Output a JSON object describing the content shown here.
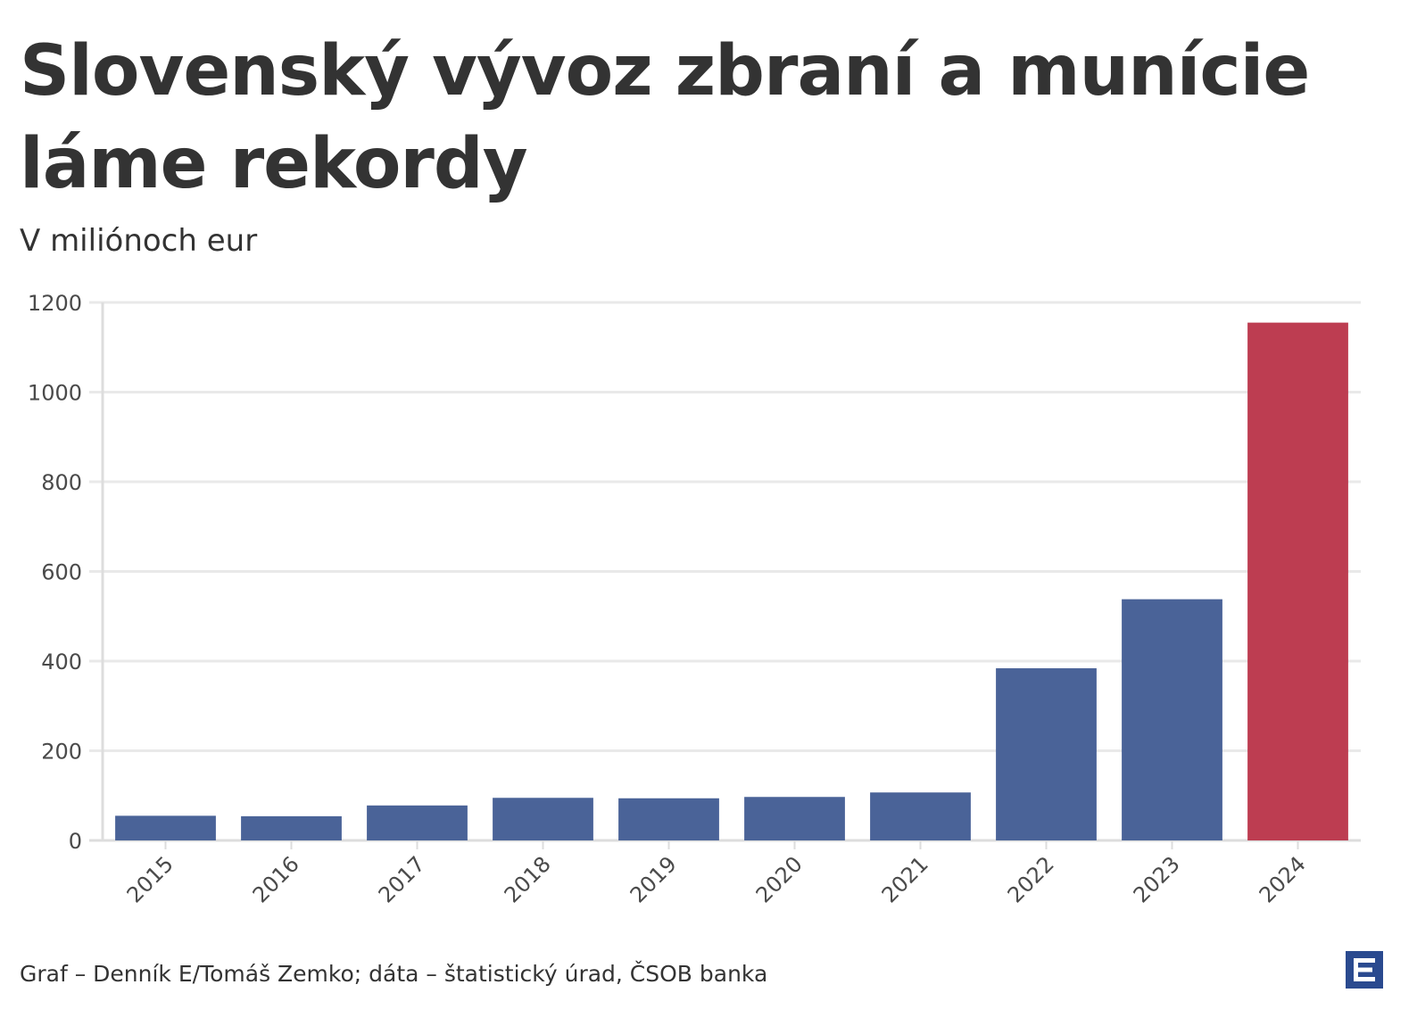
{
  "title": "Slovenský vývoz zbraní a munície láme rekordy",
  "subtitle": "V miliónoch eur",
  "footer": "Graf – Denník E/Tomáš Zemko; dáta – štatistický úrad, ČSOB banka",
  "colors": {
    "bar": "#4a6398",
    "highlight": "#bd3d51",
    "grid": "#e9e9e9",
    "axis": "#dddddd",
    "logo": "#2a4a8f"
  },
  "chart_data": {
    "type": "bar",
    "categories": [
      "2015",
      "2016",
      "2017",
      "2018",
      "2019",
      "2020",
      "2021",
      "2022",
      "2023",
      "2024"
    ],
    "values": [
      55,
      54,
      78,
      95,
      94,
      97,
      107,
      384,
      538,
      1155
    ],
    "highlight_category": "2024",
    "ylim": [
      0,
      1200
    ],
    "yticks": [
      0,
      200,
      400,
      600,
      800,
      1000,
      1200
    ],
    "grid": true,
    "xlabel": "",
    "ylabel": ""
  }
}
